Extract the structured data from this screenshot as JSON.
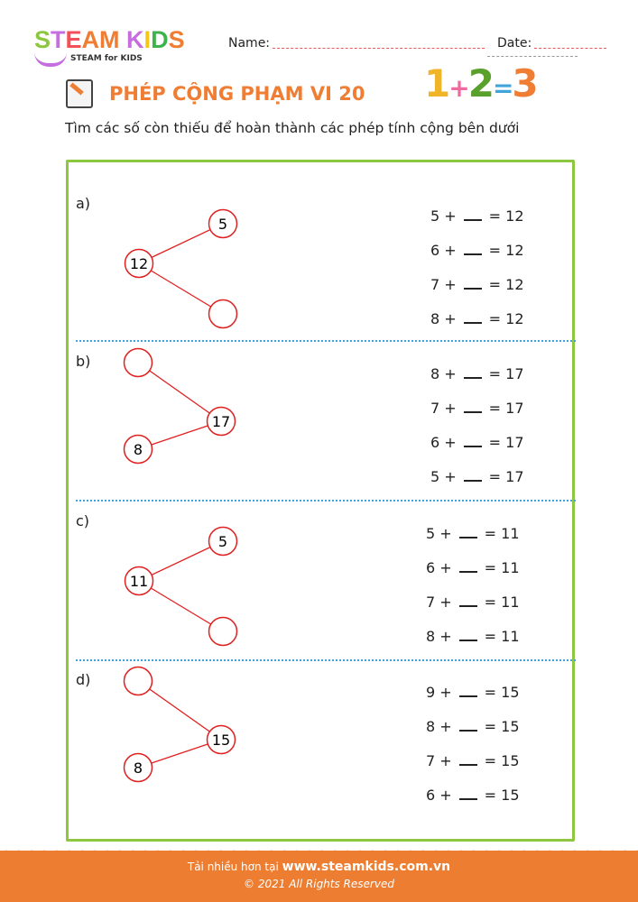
{
  "header": {
    "logo_text": "STEAM KIDS",
    "logo_sub": "STEAM for KIDS",
    "name_label": "Name:",
    "date_label": "Date:"
  },
  "title": "PHÉP CỘNG PHẠM VI 20",
  "instruction": "Tìm các số còn thiếu để hoàn thành các phép tính cộng bên dưới",
  "sections": [
    {
      "label": "a)",
      "root": "12",
      "branches": [
        "5",
        ""
      ],
      "orientation": "root-left",
      "equations": [
        [
          "5 +",
          "= 12"
        ],
        [
          "6 +",
          "= 12"
        ],
        [
          "7 +",
          "= 12"
        ],
        [
          "8 +",
          "= 12"
        ]
      ]
    },
    {
      "label": "b)",
      "root": "17",
      "branches": [
        "",
        "8"
      ],
      "orientation": "root-right",
      "equations": [
        [
          "8 +",
          "= 17"
        ],
        [
          "7 +",
          "= 17"
        ],
        [
          "6 +",
          "= 17"
        ],
        [
          "5 +",
          "= 17"
        ]
      ]
    },
    {
      "label": "c)",
      "root": "11",
      "branches": [
        "5",
        ""
      ],
      "orientation": "root-left",
      "equations": [
        [
          "5 +",
          "= 11"
        ],
        [
          "6 +",
          "= 11"
        ],
        [
          "7 +",
          "= 11"
        ],
        [
          "8 +",
          "= 11"
        ]
      ]
    },
    {
      "label": "d)",
      "root": "15",
      "branches": [
        "",
        "8"
      ],
      "orientation": "root-right",
      "equations": [
        [
          "9 +",
          "= 15"
        ],
        [
          "8 +",
          "= 15"
        ],
        [
          "7 +",
          "= 15"
        ],
        [
          "6 +",
          "= 15"
        ]
      ]
    }
  ],
  "footer": {
    "prefix": "Tải nhiều hơn tại",
    "site": "www.steamkids.com.vn",
    "copyright": "© 2021 All Rights Reserved"
  },
  "colors": {
    "accent": "#ef7d33",
    "frame": "#8dc63f",
    "circle": "#e02020",
    "separator": "#3fa5dc"
  }
}
